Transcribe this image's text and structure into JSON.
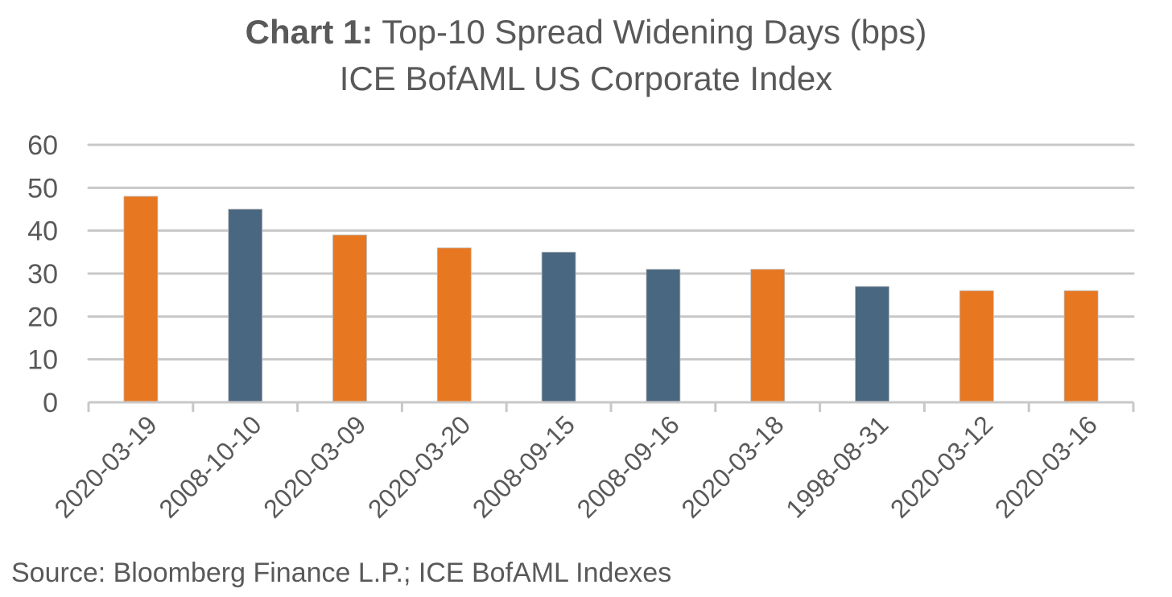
{
  "chart_data": {
    "type": "bar",
    "title_prefix": "Chart 1:",
    "title": "Top-10 Spread Widening Days (bps)",
    "subtitle": "ICE BofAML US Corporate Index",
    "xlabel": "",
    "ylabel": "",
    "ylim": [
      0,
      60
    ],
    "yticks": [
      0,
      10,
      20,
      30,
      40,
      50,
      60
    ],
    "grid": true,
    "legend": "none",
    "categories": [
      "2020-03-19",
      "2008-10-10",
      "2020-03-09",
      "2020-03-20",
      "2008-09-15",
      "2008-09-16",
      "2020-03-18",
      "1998-08-31",
      "2020-03-12",
      "2020-03-16"
    ],
    "values": [
      48,
      45,
      39,
      36,
      35,
      31,
      31,
      27,
      26,
      26
    ],
    "bar_groups": [
      "2020",
      "2008",
      "2020",
      "2020",
      "2008",
      "2008",
      "2020",
      "1998",
      "2020",
      "2020"
    ],
    "colors": {
      "2020": "#E87722",
      "2008": "#4A6781",
      "1998": "#4A6781"
    },
    "source": "Source: Bloomberg Finance L.P.; ICE BofAML Indexes"
  }
}
